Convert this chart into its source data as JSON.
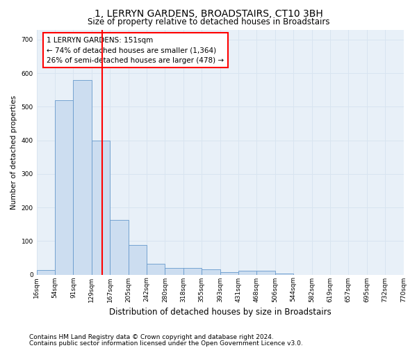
{
  "title": "1, LERRYN GARDENS, BROADSTAIRS, CT10 3BH",
  "subtitle": "Size of property relative to detached houses in Broadstairs",
  "xlabel": "Distribution of detached houses by size in Broadstairs",
  "ylabel": "Number of detached properties",
  "footnote1": "Contains HM Land Registry data © Crown copyright and database right 2024.",
  "footnote2": "Contains public sector information licensed under the Open Government Licence v3.0.",
  "bar_color": "#ccddf0",
  "bar_edge_color": "#6699cc",
  "bin_labels": [
    "16sqm",
    "54sqm",
    "91sqm",
    "129sqm",
    "167sqm",
    "205sqm",
    "242sqm",
    "280sqm",
    "318sqm",
    "355sqm",
    "393sqm",
    "431sqm",
    "468sqm",
    "506sqm",
    "544sqm",
    "582sqm",
    "619sqm",
    "657sqm",
    "695sqm",
    "732sqm",
    "770sqm"
  ],
  "bin_edges": [
    16,
    54,
    91,
    129,
    167,
    205,
    242,
    280,
    318,
    355,
    393,
    431,
    468,
    506,
    544,
    582,
    619,
    657,
    695,
    732,
    770
  ],
  "bar_heights": [
    13,
    520,
    580,
    400,
    163,
    88,
    33,
    20,
    20,
    15,
    8,
    12,
    12,
    3,
    0,
    0,
    0,
    0,
    0,
    0
  ],
  "red_line_x": 151,
  "ylim": [
    0,
    730
  ],
  "yticks": [
    0,
    100,
    200,
    300,
    400,
    500,
    600,
    700
  ],
  "annotation_text": "1 LERRYN GARDENS: 151sqm\n← 74% of detached houses are smaller (1,364)\n26% of semi-detached houses are larger (478) →",
  "grid_color": "#d8e4f0",
  "bg_color": "#e8f0f8",
  "title_fontsize": 10,
  "subtitle_fontsize": 8.5,
  "ylabel_fontsize": 7.5,
  "xlabel_fontsize": 8.5,
  "tick_fontsize": 6.5,
  "annot_fontsize": 7.5,
  "footnote_fontsize": 6.5
}
